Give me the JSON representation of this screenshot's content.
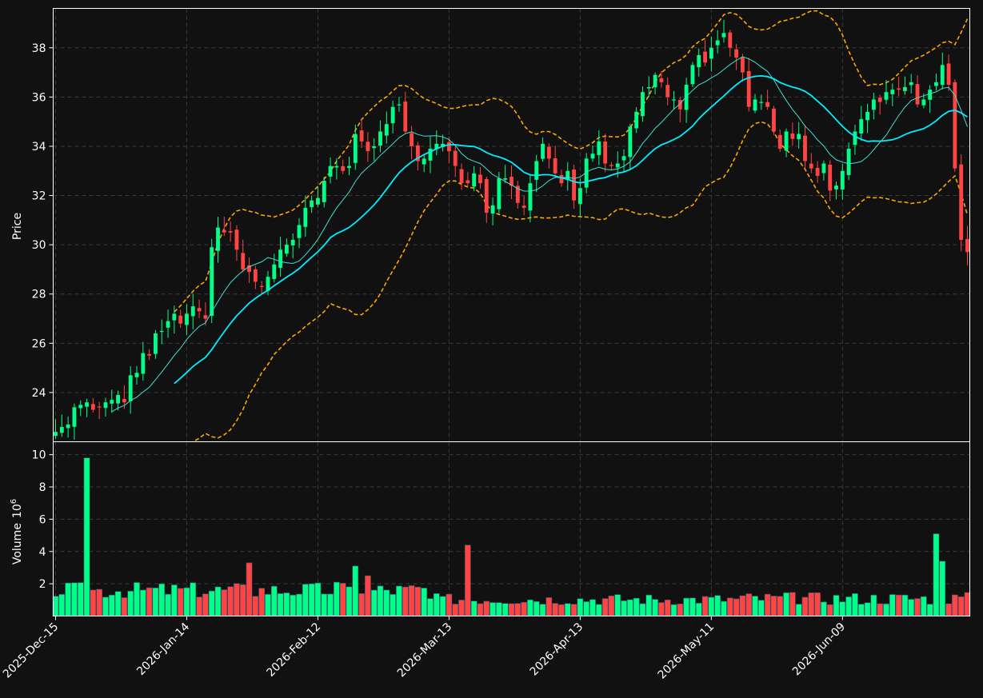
{
  "chart_data": {
    "type": "candlestick",
    "price_panel": {
      "ylabel": "Price",
      "ylim": [
        22.0,
        39.6
      ],
      "yticks": [
        24,
        26,
        28,
        30,
        32,
        34,
        36,
        38
      ],
      "grid": true
    },
    "volume_panel": {
      "ylabel": "Volume",
      "ylabel_exponent": "6",
      "ylim": [
        0,
        10.8
      ],
      "yticks": [
        2,
        4,
        6,
        8,
        10
      ],
      "grid": true
    },
    "x_tick_labels": [
      {
        "index": 0,
        "label": "2025-Dec-15"
      },
      {
        "index": 21,
        "label": "2026-Jan-14"
      },
      {
        "index": 42,
        "label": "2026-Feb-12"
      },
      {
        "index": 63,
        "label": "2026-Mar-13"
      },
      {
        "index": 84,
        "label": "2026-Apr-13"
      },
      {
        "index": 105,
        "label": "2026-May-11"
      },
      {
        "index": 126,
        "label": "2026-Jun-09"
      }
    ],
    "overlays": [
      {
        "kind": "bollinger_upper",
        "color": "#ffa500",
        "style": "dashed"
      },
      {
        "kind": "bollinger_lower",
        "color": "#ffa500",
        "style": "dashed"
      },
      {
        "kind": "moving_average_fast",
        "color": "#40e0d0"
      },
      {
        "kind": "moving_average_slow",
        "color": "#00eeff"
      }
    ],
    "colors": {
      "up": "#00ff88",
      "down": "#ff4444",
      "background": "#111111",
      "axes": "#ffffff"
    },
    "close": [
      22.4,
      22.6,
      22.7,
      23.4,
      23.5,
      23.6,
      23.3,
      23.4,
      23.6,
      23.7,
      23.9,
      23.6,
      24.7,
      24.8,
      25.6,
      25.5,
      26.4,
      26.5,
      26.9,
      27.2,
      26.8,
      27.2,
      27.5,
      27.3,
      27.0,
      29.9,
      30.7,
      30.5,
      30.5,
      29.8,
      29.0,
      28.9,
      28.5,
      28.3,
      28.7,
      29.2,
      29.8,
      30.0,
      30.2,
      30.8,
      31.5,
      31.8,
      31.9,
      32.6,
      33.2,
      33.2,
      33.0,
      33.2,
      34.5,
      34.2,
      33.8,
      34.0,
      34.6,
      34.9,
      35.6,
      35.7,
      34.6,
      34.0,
      33.4,
      33.5,
      33.9,
      34.1,
      34.1,
      33.8,
      33.2,
      32.5,
      32.5,
      32.9,
      32.5,
      31.3,
      31.6,
      32.7,
      32.7,
      32.4,
      31.7,
      31.5,
      32.5,
      33.4,
      34.1,
      33.5,
      32.9,
      32.5,
      33.0,
      31.8,
      32.3,
      33.5,
      33.7,
      34.2,
      33.3,
      33.2,
      33.3,
      33.6,
      34.8,
      35.4,
      36.2,
      36.4,
      36.9,
      36.6,
      36.0,
      35.9,
      35.5,
      36.5,
      37.3,
      37.7,
      37.4,
      38.0,
      38.3,
      38.6,
      38.0,
      37.6,
      37.0,
      35.6,
      35.9,
      35.8,
      35.6,
      34.6,
      33.9,
      34.6,
      34.3,
      34.5,
      33.4,
      33.1,
      32.8,
      33.3,
      32.2,
      32.4,
      33.0,
      33.9,
      34.6,
      35.1,
      35.4,
      35.9,
      35.8,
      36.2,
      36.3,
      36.3,
      36.4,
      36.6,
      35.7,
      35.9,
      36.3,
      36.6,
      37.3,
      36.5,
      33.1,
      30.2,
      29.7
    ]
  }
}
